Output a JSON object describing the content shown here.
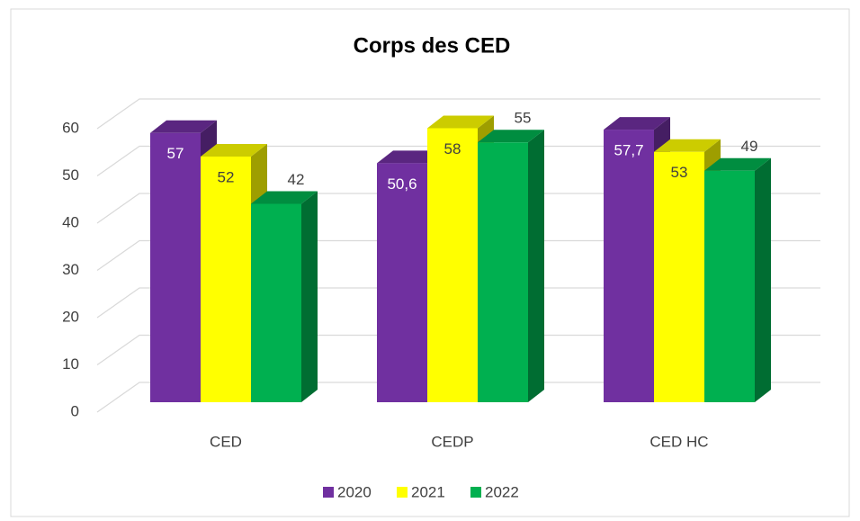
{
  "chart_data": {
    "type": "bar3d",
    "title": "Corps des CED",
    "categories": [
      "CED",
      "CEDP",
      "CED HC"
    ],
    "series": [
      {
        "name": "2020",
        "color": "#7030a0",
        "values": [
          57,
          50.6,
          57.7
        ],
        "value_labels": [
          "57",
          "50,6",
          "57,7"
        ],
        "label_position": "inside"
      },
      {
        "name": "2021",
        "color": "#ffff00",
        "values": [
          52,
          58,
          53
        ],
        "value_labels": [
          "52",
          "58",
          "53"
        ],
        "label_position": "inside"
      },
      {
        "name": "2022",
        "color": "#00b050",
        "values": [
          42,
          55,
          49
        ],
        "value_labels": [
          "42",
          "55",
          "49"
        ],
        "label_position": "outside"
      }
    ],
    "ylim": [
      0,
      60
    ],
    "yticks": [
      0,
      10,
      20,
      30,
      40,
      50,
      60
    ],
    "grid": true,
    "legend": "bottom"
  }
}
